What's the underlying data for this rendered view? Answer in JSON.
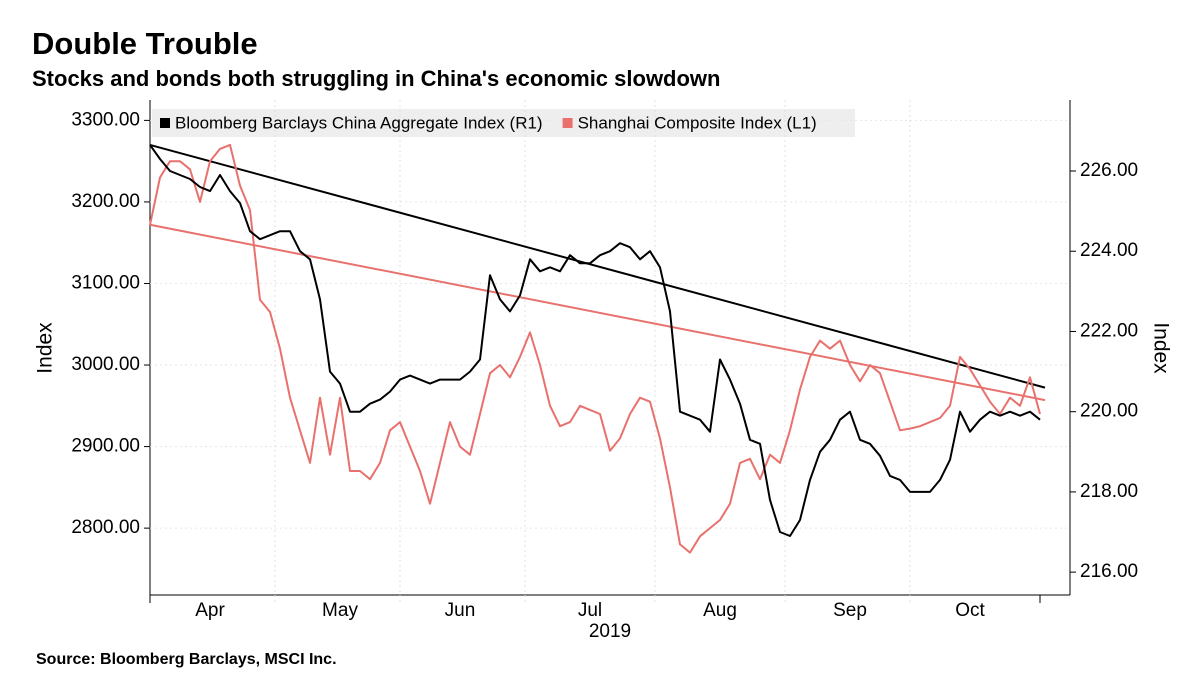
{
  "chart_data": {
    "type": "line",
    "title": "Double Trouble",
    "subtitle": "Stocks and bonds both struggling in China's economic slowdown",
    "source": "Source: Bloomberg Barclays, MSCI Inc.",
    "ylabel": "Index",
    "y2label": "Index",
    "xlabel": "2019",
    "legend": "top-left",
    "categories": [
      null,
      null,
      null,
      null,
      null,
      null,
      "Apr",
      null,
      null,
      null,
      null,
      null,
      null,
      null,
      null,
      null,
      null,
      null,
      null,
      "May",
      null,
      null,
      null,
      null,
      null,
      null,
      null,
      null,
      null,
      null,
      null,
      "Jun",
      null,
      null,
      null,
      null,
      null,
      null,
      null,
      null,
      null,
      null,
      null,
      null,
      "Jul",
      null,
      null,
      null,
      null,
      null,
      null,
      null,
      null,
      null,
      null,
      null,
      null,
      "Aug",
      null,
      null,
      null,
      null,
      null,
      null,
      null,
      null,
      null,
      null,
      null,
      null,
      "Sep",
      null,
      null,
      null,
      null,
      null,
      null,
      null,
      null,
      null,
      null,
      null,
      "Oct",
      null,
      null,
      null,
      null,
      null,
      null,
      null
    ],
    "series": [
      {
        "name": "Bloomberg Barclays China Aggregate Index (R1)",
        "color": "#000000",
        "axis": "y2",
        "values": [
          226.65,
          226.3,
          226.0,
          225.9,
          225.8,
          225.6,
          225.5,
          225.9,
          225.5,
          225.2,
          224.5,
          224.3,
          224.4,
          224.5,
          224.5,
          224.0,
          223.8,
          222.8,
          221.0,
          220.7,
          220.0,
          220.0,
          220.2,
          220.3,
          220.5,
          220.8,
          220.9,
          220.8,
          220.7,
          220.8,
          220.8,
          220.8,
          221.0,
          221.3,
          223.4,
          222.8,
          222.5,
          222.9,
          223.8,
          223.5,
          223.6,
          223.5,
          223.9,
          223.7,
          223.7,
          223.9,
          224.0,
          224.2,
          224.1,
          223.8,
          224.0,
          223.6,
          222.5,
          220.0,
          219.9,
          219.8,
          219.5,
          221.3,
          220.8,
          220.2,
          219.3,
          219.2,
          217.8,
          217.0,
          216.9,
          217.3,
          218.3,
          219.0,
          219.3,
          219.8,
          220.0,
          219.3,
          219.2,
          218.9,
          218.4,
          218.3,
          218.0,
          218.0,
          218.0,
          218.3,
          218.8,
          220.0,
          219.5,
          219.8,
          220.0,
          219.9,
          220.0,
          219.9,
          220.0,
          219.8
        ]
      },
      {
        "name": "Shanghai Composite Index (L1)",
        "color": "#e8716d",
        "values": [
          3172,
          3230,
          3250,
          3250,
          3240,
          3200,
          3250,
          3265,
          3270,
          3220,
          3190,
          3080,
          3065,
          3020,
          2960,
          2920,
          2880,
          2960,
          2890,
          2960,
          2870,
          2870,
          2860,
          2880,
          2920,
          2930,
          2900,
          2870,
          2830,
          2880,
          2930,
          2900,
          2890,
          2940,
          2990,
          3000,
          2985,
          3010,
          3040,
          3000,
          2950,
          2925,
          2930,
          2950,
          2945,
          2940,
          2895,
          2910,
          2940,
          2960,
          2955,
          2910,
          2850,
          2780,
          2770,
          2790,
          2800,
          2810,
          2830,
          2880,
          2885,
          2860,
          2890,
          2880,
          2920,
          2970,
          3010,
          3030,
          3020,
          3030,
          3000,
          2980,
          3000,
          2990,
          2955,
          2920,
          2922,
          2925,
          2930,
          2935,
          2950,
          3010,
          2995,
          2975,
          2955,
          2940,
          2960,
          2950,
          2985,
          2940
        ]
      }
    ],
    "trend_lines": [
      {
        "color": "#000000",
        "axis": "y2",
        "values": [
          226.65,
          220.6
        ]
      },
      {
        "color": "#e8716d",
        "values": [
          3172,
          2957
        ]
      }
    ],
    "ylim": [
      2718,
      3325
    ],
    "yticks": [
      {
        "value": 2800,
        "label": "2800.00"
      },
      {
        "value": 2900,
        "label": "2900.00"
      },
      {
        "value": 3000,
        "label": "3000.00"
      },
      {
        "value": 3100,
        "label": "3100.00"
      },
      {
        "value": 3200,
        "label": "3200.00"
      },
      {
        "value": 3300,
        "label": "3300.00"
      }
    ],
    "y2lim": [
      215.43,
      227.77
    ],
    "y2ticks": [
      {
        "value": 216,
        "label": "216.00"
      },
      {
        "value": 218,
        "label": "218.00"
      },
      {
        "value": 220,
        "label": "220.00"
      },
      {
        "value": 222,
        "label": "222.00"
      },
      {
        "value": 224,
        "label": "224.00"
      },
      {
        "value": 226,
        "label": "226.00"
      }
    ]
  }
}
